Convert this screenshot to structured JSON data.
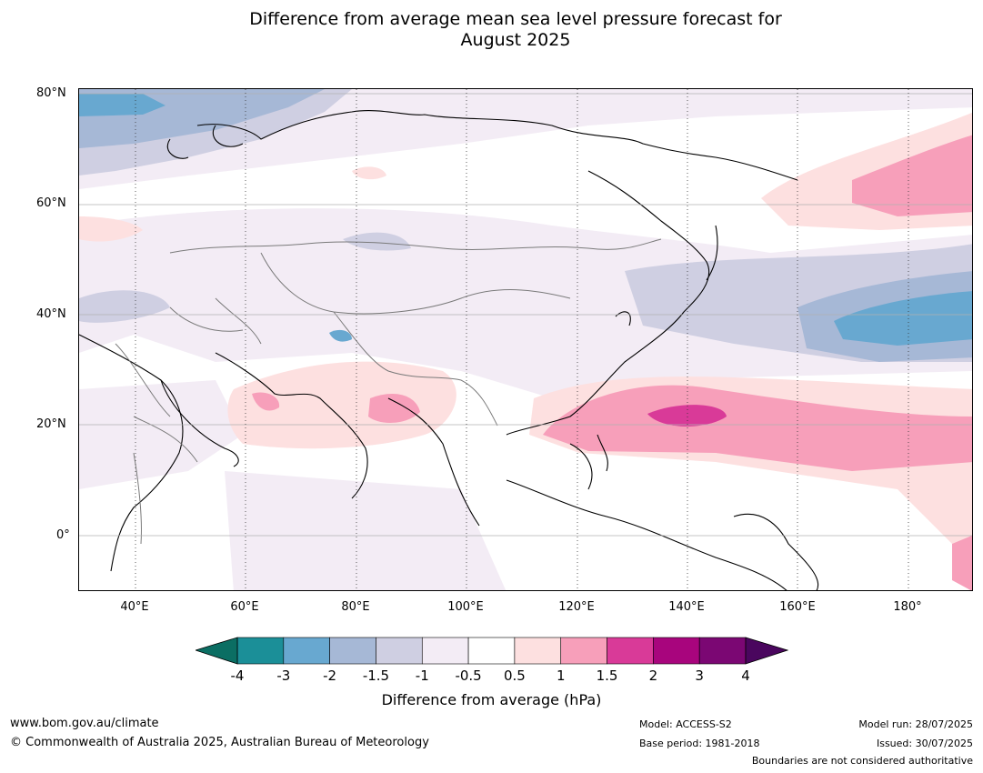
{
  "title_line1": "Difference from average mean sea level pressure forecast for",
  "title_line2": "August 2025",
  "lat_labels": [
    "80°N",
    "60°N",
    "40°N",
    "20°N",
    "0°"
  ],
  "lon_labels": [
    "40°E",
    "60°E",
    "80°E",
    "100°E",
    "120°E",
    "140°E",
    "160°E",
    "180°"
  ],
  "colorbar": {
    "ticks": [
      "-4",
      "-3",
      "-2",
      "-1.5",
      "-1",
      "-0.5",
      "0.5",
      "1",
      "1.5",
      "2",
      "3",
      "4"
    ],
    "colors": [
      "#1b8f98",
      "#68a8d0",
      "#a6b8d6",
      "#cfcfe2",
      "#f3ecf5",
      "#ffffff",
      "#fde0e0",
      "#f79fba",
      "#d93a98",
      "#a8057d",
      "#7b0773"
    ],
    "extend_low": "#0b6e63",
    "extend_high": "#4a065e",
    "title": "Difference from average (hPa)"
  },
  "footer": {
    "url": "www.bom.gov.au/climate",
    "copyright": "© Commonwealth of Australia 2025, Australian Bureau of Meteorology",
    "model": "Model: ACCESS-S2",
    "base_period": "Base period: 1981-2018",
    "model_run": "Model run: 28/07/2025",
    "issued": "Issued: 30/07/2025",
    "disclaimer": "Boundaries are not considered authoritative"
  }
}
